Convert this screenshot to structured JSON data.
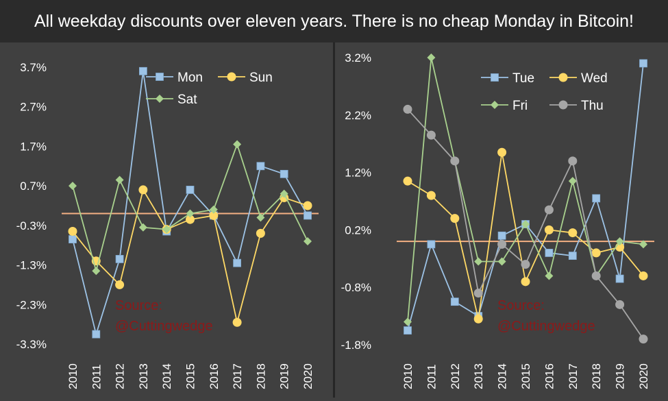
{
  "title": "All weekday discounts over eleven years. There is no cheap Monday in Bitcoin!",
  "colors": {
    "background": "#404040",
    "title_bar": "#2b2b2b",
    "text": "#ffffff",
    "zero_line": "#f4b183",
    "source": "#8b1a1a",
    "blue": "#9dc3e6",
    "yellow": "#ffd966",
    "green": "#a9d18e",
    "gray": "#a6a6a6"
  },
  "chart_data": [
    {
      "type": "line",
      "categories": [
        "2010",
        "2011",
        "2012",
        "2013",
        "2014",
        "2015",
        "2016",
        "2017",
        "2018",
        "2019",
        "2020"
      ],
      "y_ticks": [
        "3.7%",
        "2.7%",
        "1.7%",
        "0.7%",
        "-0.3%",
        "-1.3%",
        "-2.3%",
        "-3.3%"
      ],
      "ylim": [
        -3.3,
        3.7
      ],
      "zero_line": 0.0,
      "source_text": [
        "Source:",
        "@Cuttingwedge"
      ],
      "series": [
        {
          "name": "Mon",
          "color": "#9dc3e6",
          "marker": "square",
          "values": [
            -0.65,
            -3.05,
            -1.15,
            3.6,
            -0.45,
            0.6,
            -0.05,
            -1.25,
            1.2,
            1.0,
            -0.05
          ]
        },
        {
          "name": "Sun",
          "color": "#ffd966",
          "marker": "circle",
          "values": [
            -0.45,
            -1.2,
            -1.8,
            0.6,
            -0.4,
            -0.15,
            -0.05,
            -2.75,
            -0.5,
            0.4,
            0.2
          ]
        },
        {
          "name": "Sat",
          "color": "#a9d18e",
          "marker": "diamond",
          "values": [
            0.7,
            -1.45,
            0.85,
            -0.35,
            -0.4,
            0.0,
            0.1,
            1.75,
            -0.1,
            0.5,
            -0.7
          ]
        }
      ],
      "legend": [
        "Mon",
        "Sun",
        "Sat"
      ]
    },
    {
      "type": "line",
      "categories": [
        "2010",
        "2011",
        "2012",
        "2013",
        "2014",
        "2015",
        "2016",
        "2017",
        "2018",
        "2019",
        "2020"
      ],
      "y_ticks": [
        "3.2%",
        "2.2%",
        "1.2%",
        "0.2%",
        "-0.8%",
        "-1.8%"
      ],
      "ylim": [
        -1.8,
        3.2
      ],
      "zero_line": 0.0,
      "source_text": [
        "Source:",
        "@Cuttingwedge"
      ],
      "series": [
        {
          "name": "Tue",
          "color": "#9dc3e6",
          "marker": "square",
          "values": [
            -1.55,
            -0.05,
            -1.05,
            -1.3,
            0.1,
            0.3,
            -0.2,
            -0.25,
            0.75,
            -0.65,
            3.1
          ]
        },
        {
          "name": "Wed",
          "color": "#ffd966",
          "marker": "circle",
          "values": [
            1.05,
            0.8,
            0.4,
            -1.35,
            1.55,
            -0.7,
            0.2,
            0.15,
            -0.2,
            -0.1,
            -0.6
          ]
        },
        {
          "name": "Fri",
          "color": "#a9d18e",
          "marker": "diamond",
          "values": [
            -1.4,
            3.2,
            1.4,
            -0.35,
            -0.35,
            0.3,
            -0.6,
            1.05,
            -0.6,
            0.0,
            -0.05
          ]
        },
        {
          "name": "Thu",
          "color": "#a6a6a6",
          "marker": "circle",
          "values": [
            2.3,
            1.85,
            1.4,
            -0.9,
            -0.05,
            -0.4,
            0.55,
            1.4,
            -0.6,
            -1.1,
            -1.7
          ]
        }
      ],
      "legend": [
        "Tue",
        "Wed",
        "Fri",
        "Thu"
      ]
    }
  ]
}
